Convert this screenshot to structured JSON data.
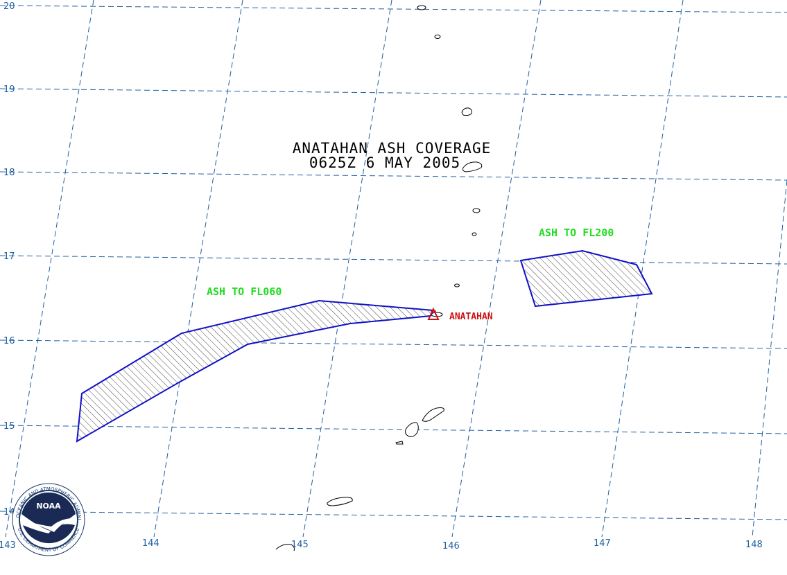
{
  "map": {
    "title_line1": "ANATAHAN ASH COVERAGE",
    "title_line2": "0625Z 6 MAY 2005",
    "lat_labels": [
      "20",
      "19",
      "18",
      "17",
      "16",
      "15",
      "14"
    ],
    "lon_labels": [
      "143",
      "144",
      "145",
      "146",
      "147",
      "148"
    ],
    "ash_areas": [
      {
        "label": "ASH TO FL060",
        "top_flight_level": "FL060"
      },
      {
        "label": "ASH TO FL200",
        "top_flight_level": "FL200"
      }
    ],
    "volcano": {
      "name": "ANATAHAN",
      "symbol": "volcano-triangle-icon"
    },
    "colors": {
      "grid": "#1f5fa0",
      "ash_outline": "#1010c8",
      "ash_label": "#22dd22",
      "volcano": "#cc1111"
    }
  },
  "logo": {
    "name": "NOAA",
    "ring_top": "NATIONAL OCEANIC AND ATMOSPHERIC ADMINISTRATION",
    "ring_bottom": "U.S. DEPARTMENT OF COMMERCE"
  }
}
